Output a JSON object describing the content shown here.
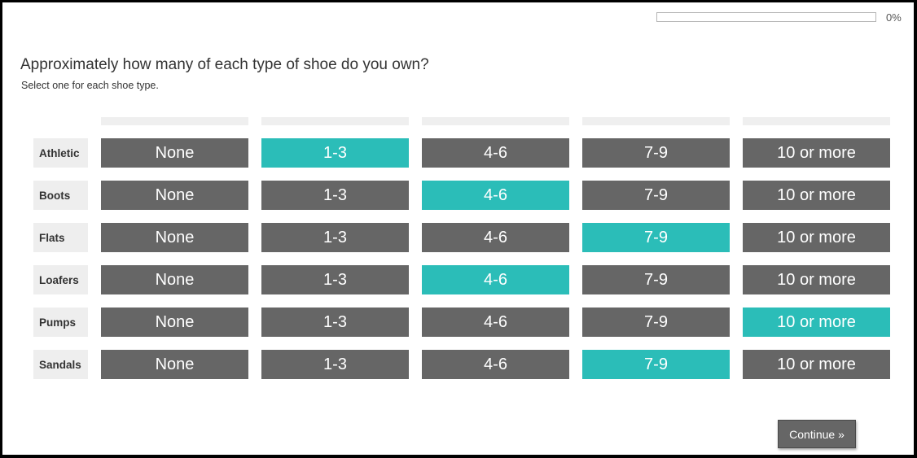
{
  "progress": {
    "fraction": 0.0,
    "label": "0%"
  },
  "question": {
    "title": "Approximately how many of each type of shoe do you own?",
    "instructions": "Select one for each shoe type."
  },
  "columns": [
    "None",
    "1-3",
    "4-6",
    "7-9",
    "10 or more"
  ],
  "rows": [
    {
      "label": "Athletic",
      "selected_index": 1
    },
    {
      "label": "Boots",
      "selected_index": 2
    },
    {
      "label": "Flats",
      "selected_index": 3
    },
    {
      "label": "Loafers",
      "selected_index": 2
    },
    {
      "label": "Pumps",
      "selected_index": 4
    },
    {
      "label": "Sandals",
      "selected_index": 3
    }
  ],
  "colors": {
    "selected": "#2bbdb8",
    "unselected": "#666666",
    "label_background": "#eeeeee"
  },
  "continue_button": {
    "label": "Continue »"
  }
}
